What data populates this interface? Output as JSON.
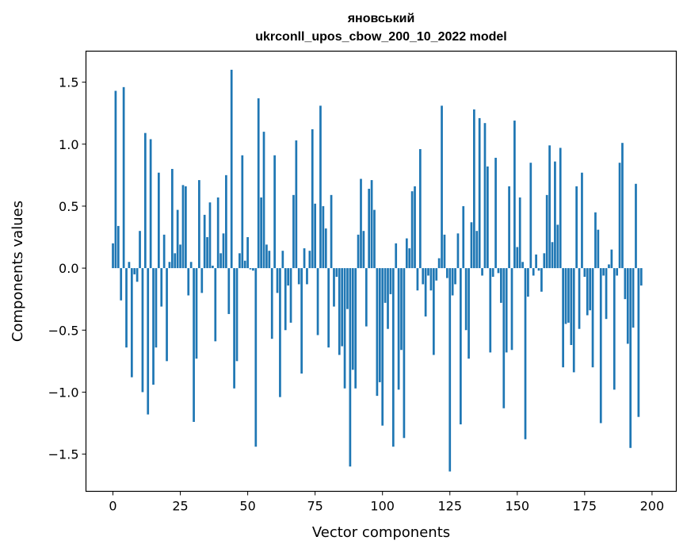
{
  "chart_data": {
    "type": "bar",
    "title_line1": "яновський",
    "title_line2": "ukrconll_upos_cbow_200_10_2022 model",
    "xlabel": "Vector components",
    "ylabel": "Components values",
    "xlim": [
      -10,
      209
    ],
    "ylim": [
      -1.8,
      1.75
    ],
    "xticks": [
      0,
      25,
      50,
      75,
      100,
      125,
      150,
      175,
      200
    ],
    "yticks": [
      -1.5,
      -1.0,
      -0.5,
      0.0,
      0.5,
      1.0,
      1.5
    ],
    "ytick_labels": [
      "−1.5",
      "−1.0",
      "−0.5",
      "0.0",
      "0.5",
      "1.0",
      "1.5"
    ],
    "bar_color": "#1f77b4",
    "values": [
      0.2,
      1.43,
      0.34,
      -0.26,
      1.46,
      -0.64,
      0.05,
      -0.88,
      -0.05,
      -0.11,
      0.3,
      -1.0,
      1.09,
      -1.18,
      1.04,
      -0.94,
      -0.64,
      0.77,
      -0.31,
      0.27,
      -0.75,
      0.05,
      0.8,
      0.12,
      0.47,
      0.19,
      0.67,
      0.66,
      -0.22,
      0.05,
      -1.24,
      -0.73,
      0.71,
      -0.2,
      0.43,
      0.25,
      0.53,
      0.02,
      -0.59,
      0.57,
      0.12,
      0.28,
      0.75,
      -0.37,
      1.6,
      -0.97,
      -0.75,
      0.12,
      0.91,
      0.06,
      0.25,
      -0.01,
      -0.02,
      -1.44,
      1.37,
      0.57,
      1.1,
      0.19,
      0.14,
      -0.57,
      0.91,
      -0.2,
      -1.04,
      0.14,
      -0.5,
      -0.14,
      -0.44,
      0.59,
      1.03,
      -0.13,
      -0.85,
      0.16,
      -0.13,
      0.14,
      1.12,
      0.52,
      -0.54,
      1.31,
      0.5,
      0.32,
      -0.64,
      0.59,
      -0.31,
      -0.07,
      -0.7,
      -0.63,
      -0.97,
      -0.33,
      -1.6,
      -0.82,
      -0.97,
      0.27,
      0.72,
      0.3,
      -0.47,
      0.64,
      0.71,
      0.47,
      -1.03,
      -0.92,
      -1.27,
      -0.28,
      -0.49,
      -0.21,
      -1.44,
      0.2,
      -0.98,
      -0.66,
      -1.37,
      0.24,
      0.16,
      0.62,
      0.66,
      -0.18,
      0.96,
      -0.13,
      -0.39,
      -0.06,
      -0.18,
      -0.7,
      -0.1,
      0.08,
      1.31,
      0.27,
      -0.08,
      -1.64,
      -0.22,
      -0.13,
      0.28,
      -1.26,
      0.5,
      -0.5,
      -0.73,
      0.37,
      1.28,
      0.3,
      1.21,
      -0.06,
      1.17,
      0.82,
      -0.68,
      -0.07,
      0.89,
      -0.04,
      -0.28,
      -1.13,
      -0.68,
      0.66,
      -0.66,
      1.19,
      0.17,
      0.57,
      0.05,
      -1.38,
      -0.23,
      0.85,
      -0.06,
      0.11,
      -0.02,
      -0.19,
      0.12,
      0.59,
      0.99,
      0.21,
      0.86,
      0.35,
      0.97,
      -0.8,
      -0.45,
      -0.44,
      -0.62,
      -0.84,
      0.66,
      -0.49,
      0.77,
      -0.07,
      -0.38,
      -0.34,
      -0.8,
      0.45,
      0.31,
      -1.25,
      -0.06,
      -0.41,
      0.03,
      0.15,
      -0.98,
      -0.06,
      0.85,
      1.01,
      -0.25,
      -0.61,
      -1.45,
      -0.48,
      0.68,
      -1.2,
      -0.14
    ]
  }
}
